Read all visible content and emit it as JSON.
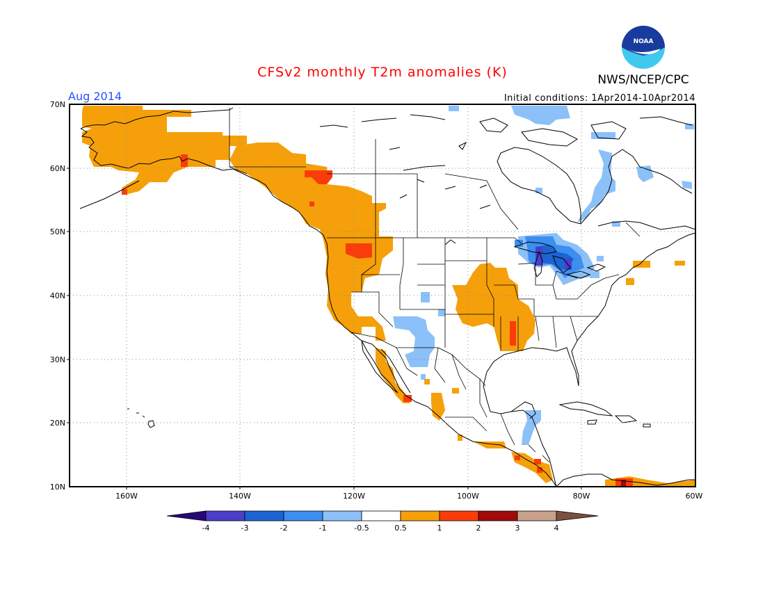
{
  "header": {
    "title": "CFSv2 monthly T2m anomalies (K)",
    "agency": "NWS/NCEP/CPC",
    "valid_month": "Aug 2014",
    "initial_conditions": "Initial conditions: 1Apr2014-10Apr2014",
    "logo_text": "NOAA"
  },
  "axes": {
    "lat_labels": [
      "70N",
      "60N",
      "50N",
      "40N",
      "30N",
      "20N",
      "10N"
    ],
    "lon_labels": [
      "160W",
      "140W",
      "120W",
      "100W",
      "80W",
      "60W"
    ],
    "lat_range": [
      10,
      70
    ],
    "lon_range": [
      -170,
      -60
    ],
    "grid": "dotted"
  },
  "colorbar": {
    "labels": [
      "-4",
      "-3",
      "-2",
      "-1",
      "-0.5",
      "0.5",
      "1",
      "2",
      "3",
      "4"
    ],
    "colors": [
      "#28087a",
      "#4b3ec8",
      "#1b64d2",
      "#3c8ef0",
      "#8cc0f8",
      "#ffffff",
      "#f5a00a",
      "#fa3c0a",
      "#a00a0a",
      "#c8a08c",
      "#7a5040"
    ]
  },
  "colors": {
    "title": "#ff0000",
    "month_label": "#2850ff",
    "frame": "#000000",
    "coast": "#000000",
    "grid": "#888888"
  },
  "chart_data": {
    "type": "heatmap",
    "units": "K",
    "regions": [
      {
        "area": "Alaska",
        "anomaly_class": "0.5 to 1"
      },
      {
        "area": "Western Canada",
        "anomaly_class": "0.5 to 1"
      },
      {
        "area": "US Pacific Northwest",
        "anomaly_class": "1 to 2"
      },
      {
        "area": "US West Coast",
        "anomaly_class": "0.5 to 1"
      },
      {
        "area": "Central US",
        "anomaly_class": "0.5 to 1"
      },
      {
        "area": "Lower Mississippi Valley",
        "anomaly_class": "1 to 2"
      },
      {
        "area": "US Southwest",
        "anomaly_class": "-1 to -0.5"
      },
      {
        "area": "Great Lakes",
        "anomaly_class": "-3 to -2"
      },
      {
        "area": "Hudson Bay region",
        "anomaly_class": "-1 to -0.5"
      },
      {
        "area": "Southern Mexico / Central America",
        "anomaly_class": "0.5 to 2"
      },
      {
        "area": "Northern South America",
        "anomaly_class": "0.5 to 2"
      }
    ]
  }
}
